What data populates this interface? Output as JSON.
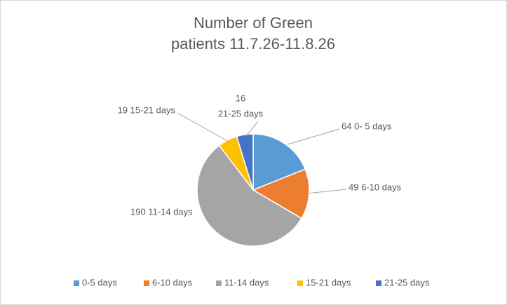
{
  "chart_data": {
    "type": "pie",
    "title": [
      "Number of Green",
      "patients 11.7.26-11.8.26"
    ],
    "categories": [
      "0-5 days",
      "6-10 days",
      "11-14 days",
      "15-21 days",
      "21-25 days"
    ],
    "values": [
      64,
      49,
      190,
      19,
      16
    ],
    "value_labels": [
      [
        "64  0- 5 days"
      ],
      [
        "49  6-10 days"
      ],
      [
        "190 11-14 days"
      ],
      [
        "19 15-21 days"
      ],
      [
        "16",
        "21-25 days"
      ]
    ],
    "colors": [
      "#5b9bd5",
      "#ed7d31",
      "#a5a5a5",
      "#ffc000",
      "#4472c4"
    ],
    "legend": "bottom"
  }
}
